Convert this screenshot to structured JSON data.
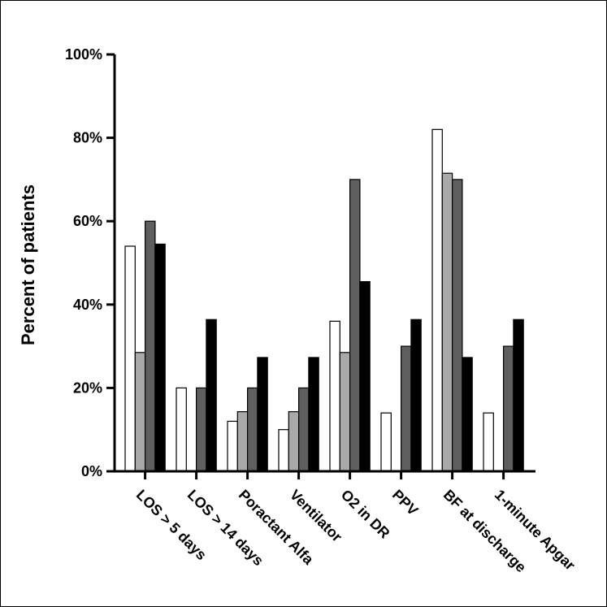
{
  "chart_data": {
    "type": "bar",
    "title": "",
    "xlabel": "",
    "ylabel": "Percent of patients",
    "ylim": [
      0,
      100
    ],
    "yticks": [
      0,
      20,
      40,
      60,
      80,
      100
    ],
    "ytick_labels": [
      "0%",
      "20%",
      "40%",
      "60%",
      "80%",
      "100%"
    ],
    "grid": false,
    "legend": "none",
    "categories": [
      "LOS > 5 days",
      "LOS > 14 days",
      "Poractant Alfa",
      "Ventilator",
      "O2 in DR",
      "PPV",
      "BF at discharge",
      "1-minute Apgar"
    ],
    "series": [
      {
        "color": "#ffffff",
        "values": [
          54,
          20,
          12,
          10,
          36,
          14,
          82,
          14
        ]
      },
      {
        "color": "#a9a9a9",
        "values": [
          28.5,
          0,
          14.3,
          14.3,
          28.5,
          0,
          71.5,
          0
        ]
      },
      {
        "color": "#5f5f5f",
        "values": [
          60,
          20,
          20,
          20,
          70,
          30,
          70,
          30
        ]
      },
      {
        "color": "#000000",
        "values": [
          54.5,
          36.4,
          27.3,
          27.3,
          45.5,
          36.4,
          27.3,
          36.4
        ]
      }
    ]
  }
}
